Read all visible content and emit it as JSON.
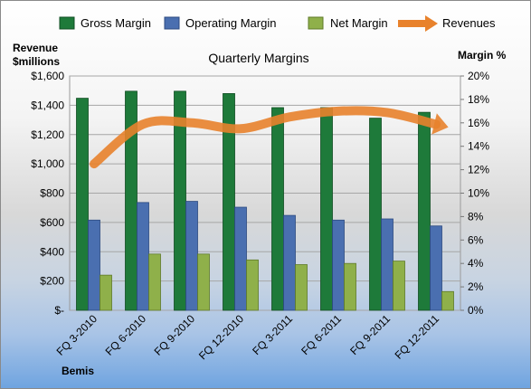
{
  "chart_data": {
    "type": "bar",
    "title": "Quarterly Margins",
    "company_label": "Bemis",
    "left_axis_label": [
      "Revenue",
      "$millions"
    ],
    "right_axis_label": "Margin %",
    "categories": [
      "FQ 3-2010",
      "FQ 6-2010",
      "FQ 9-2010",
      "FQ 12-2010",
      "FQ 3-2011",
      "FQ 6-2011",
      "FQ 9-2011",
      "FQ 12-2011"
    ],
    "series": [
      {
        "name": "Gross Margin",
        "axis": "right",
        "color": "#1e7a3a",
        "values": [
          18.1,
          18.7,
          18.7,
          18.5,
          17.3,
          17.3,
          16.4,
          16.9
        ]
      },
      {
        "name": "Operating Margin",
        "axis": "right",
        "color": "#4a6fb0",
        "values": [
          7.7,
          9.2,
          9.3,
          8.8,
          8.1,
          7.7,
          7.8,
          7.2
        ]
      },
      {
        "name": "Net Margin",
        "axis": "right",
        "color": "#8fb04a",
        "values": [
          3.0,
          4.8,
          4.8,
          4.3,
          3.9,
          4.0,
          4.2,
          1.6
        ]
      },
      {
        "name": "Revenues",
        "axis": "left",
        "type": "line",
        "color": "#e8822c",
        "values": [
          1000,
          1270,
          1280,
          1240,
          1320,
          1360,
          1350,
          1270
        ]
      }
    ],
    "left_ylim": [
      0,
      1600
    ],
    "left_ticks": [
      "$-",
      "$200",
      "$400",
      "$600",
      "$800",
      "$1,000",
      "$1,200",
      "$1,400",
      "$1,600"
    ],
    "right_ylim": [
      0,
      20
    ],
    "right_ticks": [
      "0%",
      "2%",
      "4%",
      "6%",
      "8%",
      "10%",
      "12%",
      "14%",
      "16%",
      "18%",
      "20%"
    ],
    "grid": true,
    "legend_position": "top"
  }
}
